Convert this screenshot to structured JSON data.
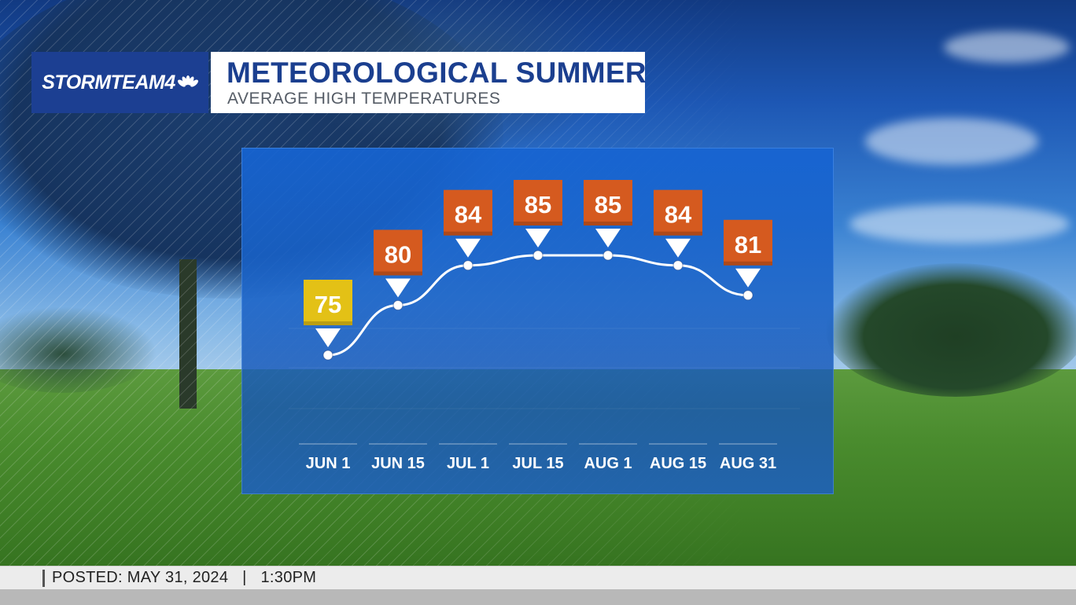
{
  "brand": {
    "name": "STORMTEAM4"
  },
  "header": {
    "title": "METEOROLOGICAL SUMMER",
    "subtitle": "AVERAGE HIGH TEMPERATURES"
  },
  "footer": {
    "posted_label": "POSTED:",
    "date": "MAY 31, 2024",
    "separator": "|",
    "time": "1:30PM"
  },
  "colors": {
    "brand_blue": "#1c3f92",
    "title_blue": "#1b3f8f",
    "tag_orange": "#d55a1f",
    "tag_yellow": "#e3c116",
    "line_white": "#ffffff"
  },
  "chart_data": {
    "type": "line",
    "title": "METEOROLOGICAL SUMMER",
    "subtitle": "AVERAGE HIGH TEMPERATURES",
    "categories": [
      "JUN 1",
      "JUN 15",
      "JUL 1",
      "JUL 15",
      "AUG 1",
      "AUG 15",
      "AUG 31"
    ],
    "values": [
      75,
      80,
      84,
      85,
      85,
      84,
      81
    ],
    "tag_colors": [
      "#e3c116",
      "#d55a1f",
      "#d55a1f",
      "#d55a1f",
      "#d55a1f",
      "#d55a1f",
      "#d55a1f"
    ],
    "ylim": [
      70,
      88
    ],
    "grid": false,
    "legend": "none"
  }
}
